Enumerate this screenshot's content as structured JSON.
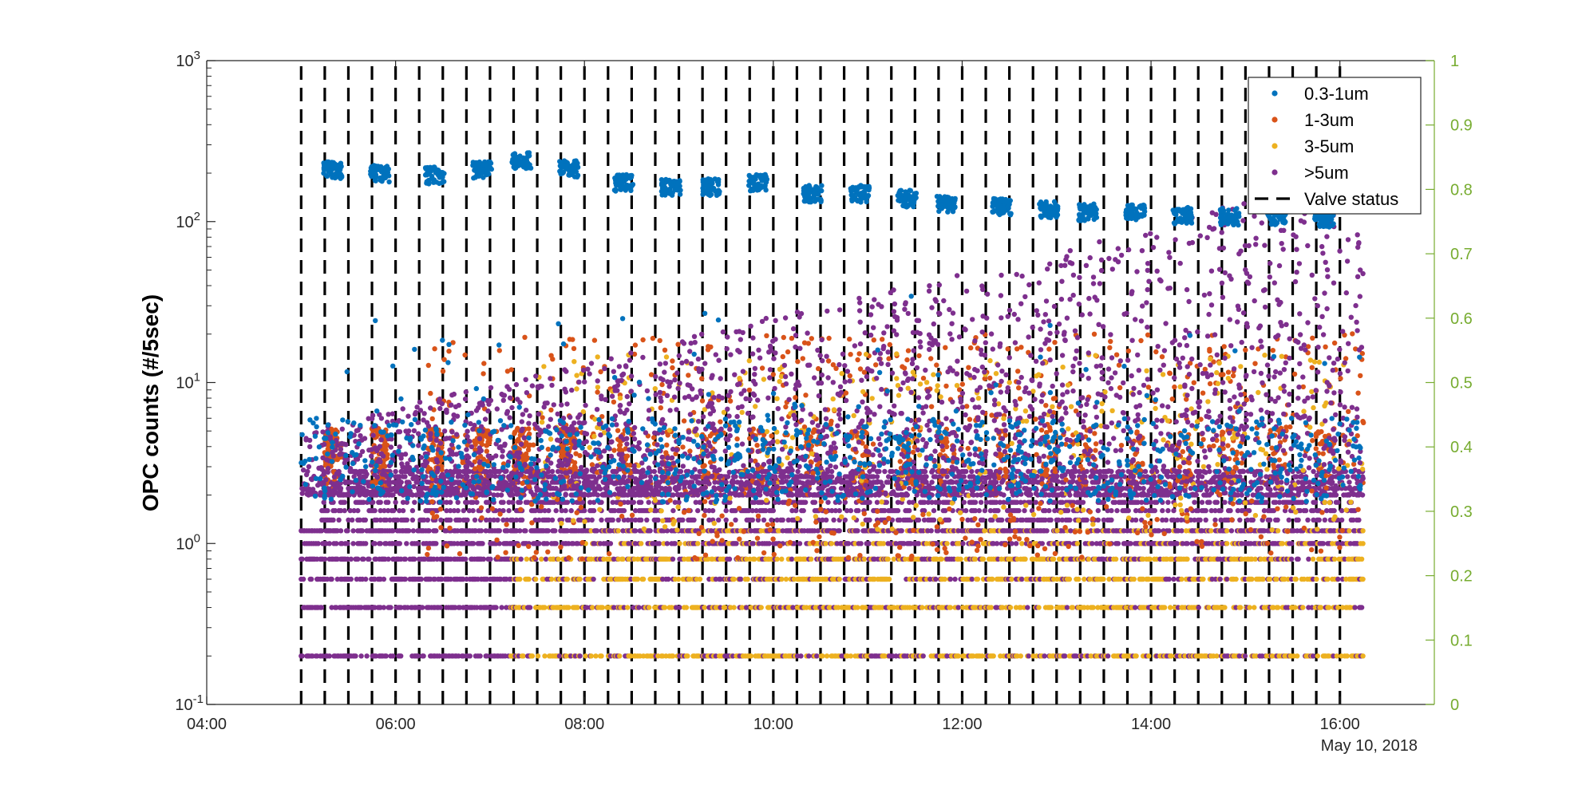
{
  "chart_data": {
    "type": "scatter",
    "title": "",
    "xlabel": "",
    "date_label": "May 10, 2018",
    "ylabel": "OPC counts (#/5sec)",
    "y_scale": "log",
    "ylim": [
      0.1,
      1000
    ],
    "y_ticks": [
      {
        "value": 0.1,
        "base": "10",
        "exp": "-1"
      },
      {
        "value": 1,
        "base": "10",
        "exp": "0"
      },
      {
        "value": 10,
        "base": "10",
        "exp": "1"
      },
      {
        "value": 100,
        "base": "10",
        "exp": "2"
      },
      {
        "value": 1000,
        "base": "10",
        "exp": "3"
      }
    ],
    "y2lim": [
      0,
      1
    ],
    "y2_ticks": [
      "0",
      "0.1",
      "0.2",
      "0.3",
      "0.4",
      "0.5",
      "0.6",
      "0.7",
      "0.8",
      "0.9",
      "1"
    ],
    "xlim": [
      "04:00",
      "17:00"
    ],
    "x_ticks": [
      "04:00",
      "06:00",
      "08:00",
      "10:00",
      "12:00",
      "14:00",
      "16:00"
    ],
    "grid": false,
    "legend_position": "top-right",
    "colors": {
      "axis_right": "#77ac30"
    },
    "series": [
      {
        "name": "0.3-1um",
        "color": "#0072bd",
        "marker": "dot",
        "peak_x": [
          "05:20",
          "05:50",
          "06:25",
          "06:55",
          "07:20",
          "07:50",
          "08:25",
          "08:55",
          "09:20",
          "09:50",
          "10:25",
          "10:55",
          "11:25",
          "11:50",
          "12:25",
          "12:55",
          "13:20",
          "13:50",
          "14:20",
          "14:50",
          "15:20",
          "15:50"
        ],
        "peak_y": [
          210,
          200,
          195,
          210,
          240,
          215,
          175,
          165,
          165,
          175,
          150,
          150,
          140,
          130,
          125,
          120,
          115,
          115,
          110,
          108,
          108,
          105
        ],
        "baseline_range": [
          1.8,
          6
        ]
      },
      {
        "name": "1-3um",
        "color": "#d95319",
        "marker": "dot",
        "typical_range": [
          0.2,
          6
        ]
      },
      {
        "name": "3-5um",
        "color": "#edb120",
        "marker": "dot",
        "typical_range": [
          0.2,
          3
        ]
      },
      {
        "name": ">5um",
        "color": "#7e2f8e",
        "marker": "dot",
        "typical_range": [
          0.2,
          60
        ]
      },
      {
        "name": "Valve status",
        "color": "#000000",
        "line_style": "dashed",
        "axis": "right",
        "switch_times": [
          "05:00",
          "05:15",
          "05:30",
          "05:45",
          "06:00",
          "06:15",
          "06:30",
          "06:45",
          "07:00",
          "07:15",
          "07:30",
          "07:45",
          "08:00",
          "08:15",
          "08:30",
          "08:45",
          "09:00",
          "09:15",
          "09:30",
          "09:45",
          "10:00",
          "10:15",
          "10:30",
          "10:45",
          "11:00",
          "11:15",
          "11:30",
          "11:45",
          "12:00",
          "12:15",
          "12:30",
          "12:45",
          "13:00",
          "13:15",
          "13:30",
          "13:45",
          "14:00",
          "14:15",
          "14:30",
          "14:45",
          "15:00",
          "15:15",
          "15:30",
          "15:45",
          "16:00"
        ],
        "values": [
          0,
          1
        ]
      }
    ]
  }
}
